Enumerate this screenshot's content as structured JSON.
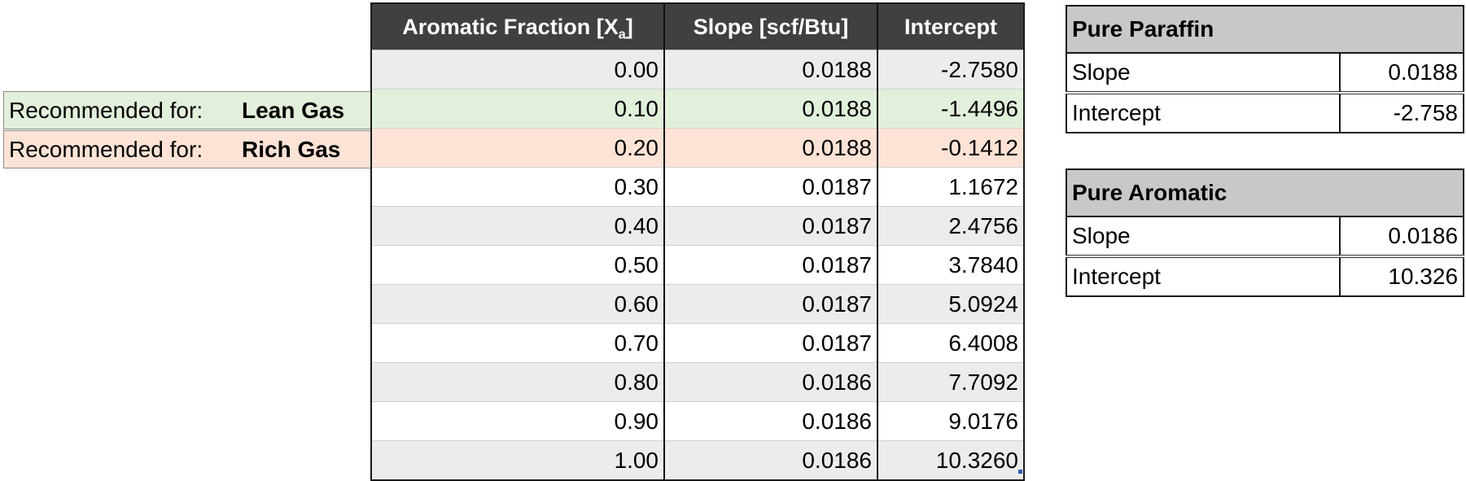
{
  "main_table": {
    "headers": {
      "aromatic_fraction_prefix": "Aromatic Fraction [X",
      "aromatic_fraction_sub": "a",
      "aromatic_fraction_suffix": "]",
      "slope": "Slope [scf/Btu]",
      "intercept": "Intercept"
    },
    "rows": [
      {
        "x": "0.00",
        "slope": "0.0188",
        "intercept": "-2.7580"
      },
      {
        "x": "0.10",
        "slope": "0.0188",
        "intercept": "-1.4496"
      },
      {
        "x": "0.20",
        "slope": "0.0188",
        "intercept": "-0.1412"
      },
      {
        "x": "0.30",
        "slope": "0.0187",
        "intercept": "1.1672"
      },
      {
        "x": "0.40",
        "slope": "0.0187",
        "intercept": "2.4756"
      },
      {
        "x": "0.50",
        "slope": "0.0187",
        "intercept": "3.7840"
      },
      {
        "x": "0.60",
        "slope": "0.0187",
        "intercept": "5.0924"
      },
      {
        "x": "0.70",
        "slope": "0.0187",
        "intercept": "6.4008"
      },
      {
        "x": "0.80",
        "slope": "0.0186",
        "intercept": "7.7092"
      },
      {
        "x": "0.90",
        "slope": "0.0186",
        "intercept": "9.0176"
      },
      {
        "x": "1.00",
        "slope": "0.0186",
        "intercept": "10.3260"
      }
    ]
  },
  "recommendations": {
    "lean": {
      "label": "Recommended for:",
      "value": "Lean Gas"
    },
    "rich": {
      "label": "Recommended for:",
      "value": "Rich Gas"
    }
  },
  "pure_paraffin": {
    "title": "Pure Paraffin",
    "slope_label": "Slope",
    "slope_value": "0.0188",
    "intercept_label": "Intercept",
    "intercept_value": "-2.758"
  },
  "pure_aromatic": {
    "title": "Pure Aromatic",
    "slope_label": "Slope",
    "slope_value": "0.0186",
    "intercept_label": "Intercept",
    "intercept_value": "10.326"
  },
  "colors": {
    "header_bg": "#404040",
    "lean_highlight": "#e2efdb",
    "rich_highlight": "#fce3d6",
    "row_gray": "#ececec",
    "side_header_bg": "#c8c8c8"
  }
}
